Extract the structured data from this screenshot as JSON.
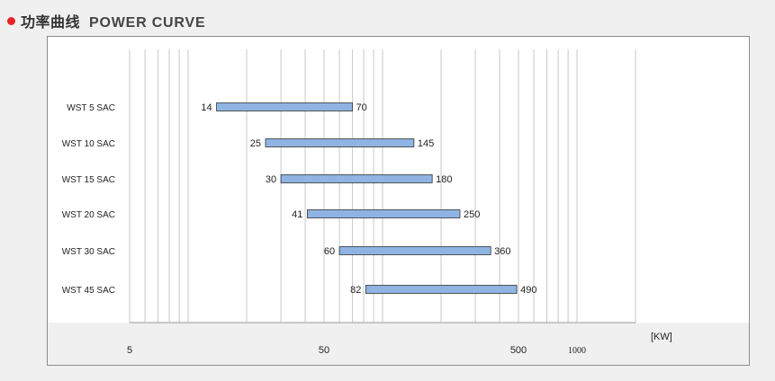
{
  "header": {
    "title_cn": "功率曲线",
    "title_en": "POWER CURVE",
    "dot_color": "#e4262a"
  },
  "chart_data": {
    "type": "bar",
    "orientation": "horizontal-range",
    "x_scale": "log",
    "xlim": [
      5,
      2000
    ],
    "unit_label": "[KW]",
    "x_ticks": [
      5,
      50,
      500,
      1000
    ],
    "x_tick_labels": [
      "5",
      "50",
      "500",
      "1000"
    ],
    "grid": true,
    "bar_color": "#8fb4e3",
    "categories": [
      "WST 5 SAC",
      "WST 10 SAC",
      "WST 15 SAC",
      "WST 20 SAC",
      "WST 30 SAC",
      "WST 45 SAC"
    ],
    "ranges": [
      {
        "min": 14,
        "max": 70
      },
      {
        "min": 25,
        "max": 145
      },
      {
        "min": 30,
        "max": 180
      },
      {
        "min": 41,
        "max": 250
      },
      {
        "min": 60,
        "max": 360
      },
      {
        "min": 82,
        "max": 490
      }
    ]
  }
}
